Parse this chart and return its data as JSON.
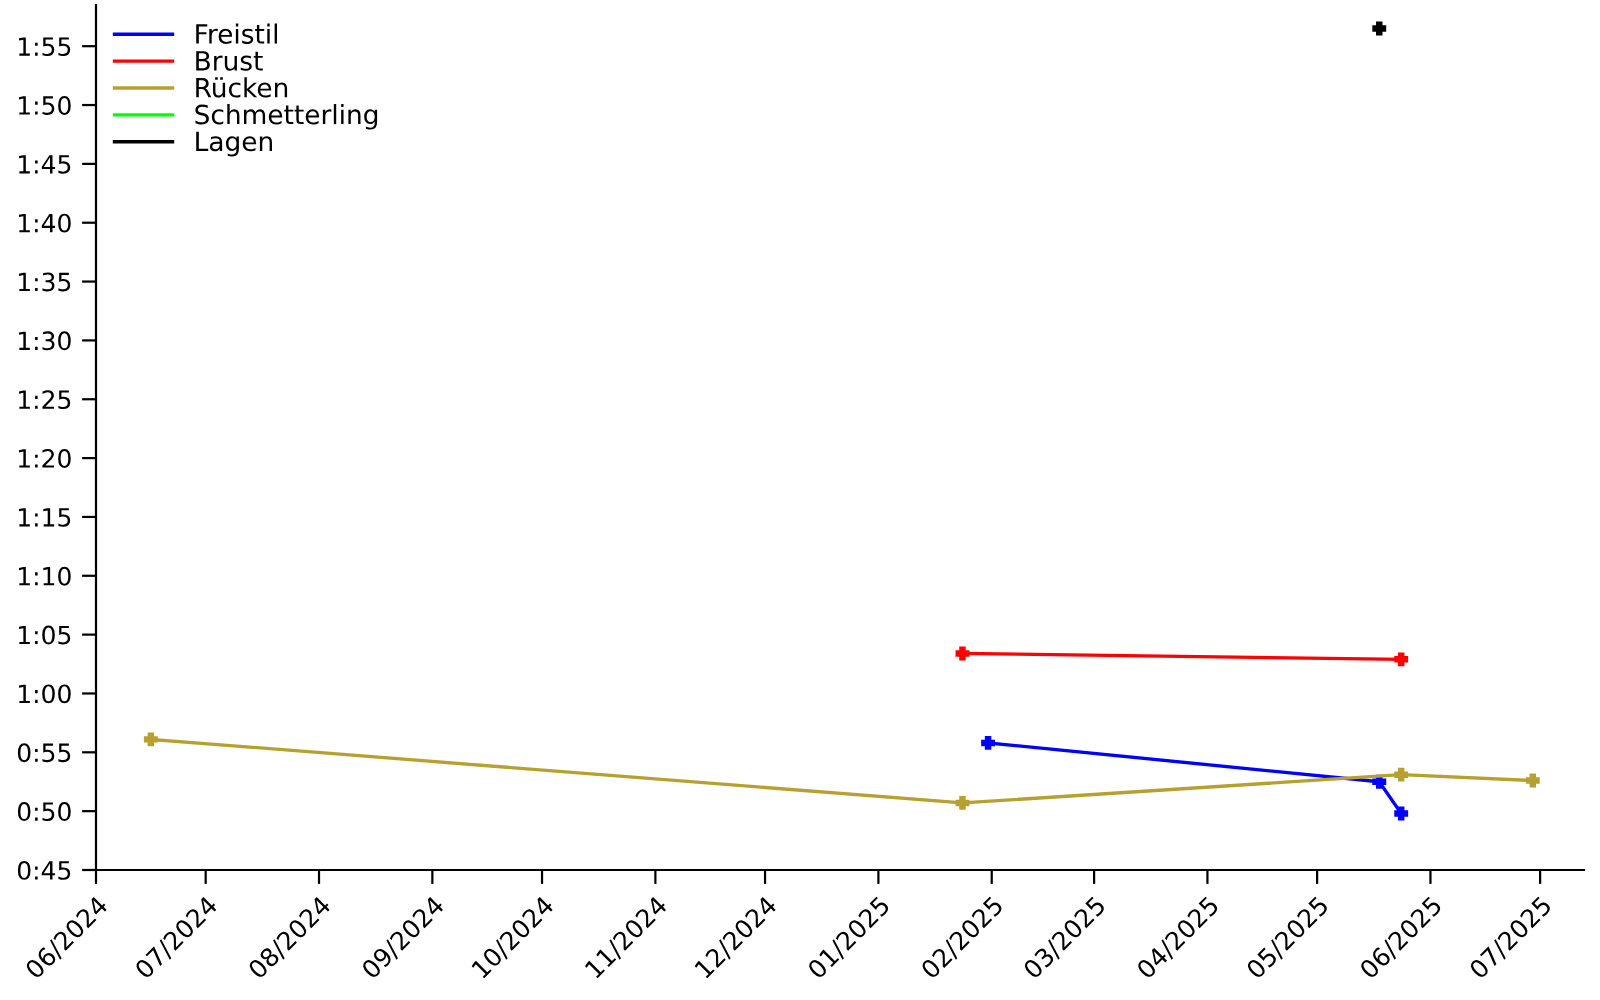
{
  "chart_data": {
    "type": "line",
    "marker": "cross",
    "line_style": "solid",
    "grid": false,
    "legend": "top left",
    "xlim": [
      "2024-06-01",
      "2025-07-13"
    ],
    "xticks": [
      {
        "value": "2024-06-01",
        "label": "06/2024"
      },
      {
        "value": "2024-07-01",
        "label": "07/2024"
      },
      {
        "value": "2024-08-01",
        "label": "08/2024"
      },
      {
        "value": "2024-09-01",
        "label": "09/2024"
      },
      {
        "value": "2024-10-01",
        "label": "10/2024"
      },
      {
        "value": "2024-11-01",
        "label": "11/2024"
      },
      {
        "value": "2024-12-01",
        "label": "12/2024"
      },
      {
        "value": "2025-01-01",
        "label": "01/2025"
      },
      {
        "value": "2025-02-01",
        "label": "02/2025"
      },
      {
        "value": "2025-03-01",
        "label": "03/2025"
      },
      {
        "value": "2025-04-01",
        "label": "04/2025"
      },
      {
        "value": "2025-05-01",
        "label": "05/2025"
      },
      {
        "value": "2025-06-01",
        "label": "06/2025"
      },
      {
        "value": "2025-07-01",
        "label": "07/2025"
      }
    ],
    "ylim": [
      45,
      118.5
    ],
    "yticks": [
      {
        "value": 45,
        "label": "0:45"
      },
      {
        "value": 50,
        "label": "0:50"
      },
      {
        "value": 55,
        "label": "0:55"
      },
      {
        "value": 60,
        "label": "1:00"
      },
      {
        "value": 65,
        "label": "1:05"
      },
      {
        "value": 70,
        "label": "1:10"
      },
      {
        "value": 75,
        "label": "1:15"
      },
      {
        "value": 80,
        "label": "1:20"
      },
      {
        "value": 85,
        "label": "1:25"
      },
      {
        "value": 90,
        "label": "1:30"
      },
      {
        "value": 95,
        "label": "1:35"
      },
      {
        "value": 100,
        "label": "1:40"
      },
      {
        "value": 105,
        "label": "1:45"
      },
      {
        "value": 110,
        "label": "1:50"
      },
      {
        "value": 115,
        "label": "1:55"
      }
    ],
    "series": [
      {
        "name": "Freistil",
        "color": "#0000ff",
        "x": [
          "2025-01-31",
          "2025-05-18",
          "2025-05-24"
        ],
        "values": [
          55.8,
          52.5,
          49.8
        ]
      },
      {
        "name": "Brust",
        "color": "#ff0000",
        "x": [
          "2025-01-24",
          "2025-05-24"
        ],
        "values": [
          63.4,
          62.9
        ]
      },
      {
        "name": "Rücken",
        "color": "#b8a030",
        "x": [
          "2024-06-16",
          "2025-01-24",
          "2025-05-24",
          "2025-06-29"
        ],
        "values": [
          56.1,
          50.7,
          53.1,
          52.6
        ]
      },
      {
        "name": "Schmetterling",
        "color": "#00ff00"
      },
      {
        "name": "Lagen",
        "color": "#000000",
        "x": [
          "2025-05-18"
        ],
        "values": [
          116.5
        ]
      }
    ]
  }
}
